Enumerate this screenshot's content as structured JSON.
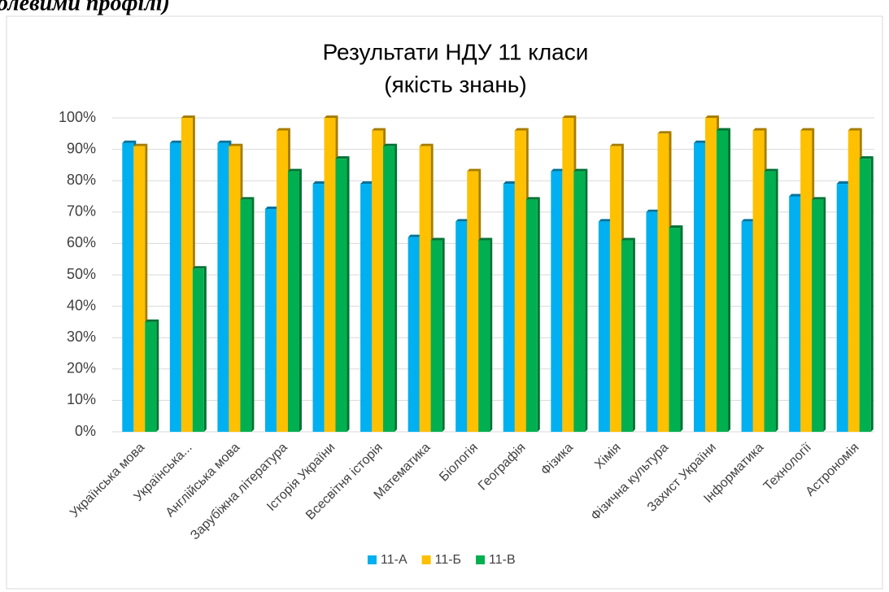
{
  "caption": "олевими профілі)",
  "chart_data": {
    "type": "bar",
    "title": "Результати НДУ 11 класи",
    "subtitle": "(якість знань)",
    "categories": [
      "Українська мова",
      "Українська...",
      "Англійська мова",
      "Зарубіжна література",
      "Історія України",
      "Всесвітня історія",
      "Математика",
      "Біологія",
      "Географія",
      "Фізика",
      "Хімія",
      "Фізична культура",
      "Захист України",
      "Інформатика",
      "Технології",
      "Астрономія"
    ],
    "series": [
      {
        "name": "11-А",
        "color": "#00b0f0",
        "values": [
          92,
          92,
          92,
          71,
          79,
          79,
          62,
          67,
          79,
          83,
          67,
          70,
          92,
          67,
          75,
          79
        ]
      },
      {
        "name": "11-Б",
        "color": "#ffc000",
        "values": [
          91,
          100,
          91,
          96,
          100,
          96,
          91,
          83,
          96,
          100,
          91,
          95,
          100,
          96,
          96,
          96
        ]
      },
      {
        "name": "11-В",
        "color": "#00b050",
        "values": [
          35,
          52,
          74,
          83,
          87,
          91,
          61,
          61,
          74,
          83,
          61,
          65,
          96,
          83,
          74,
          87
        ]
      }
    ],
    "ylim": [
      0,
      100
    ],
    "yticks": [
      {
        "value": 0,
        "label": "0%"
      },
      {
        "value": 10,
        "label": "10%"
      },
      {
        "value": 20,
        "label": "20%"
      },
      {
        "value": 30,
        "label": "30%"
      },
      {
        "value": 40,
        "label": "40%"
      },
      {
        "value": 50,
        "label": "50%"
      },
      {
        "value": 60,
        "label": "60%"
      },
      {
        "value": 70,
        "label": "70%"
      },
      {
        "value": 80,
        "label": "80%"
      },
      {
        "value": 90,
        "label": "90%"
      },
      {
        "value": 100,
        "label": "100%"
      }
    ],
    "grid": true,
    "legend": "bottom"
  }
}
